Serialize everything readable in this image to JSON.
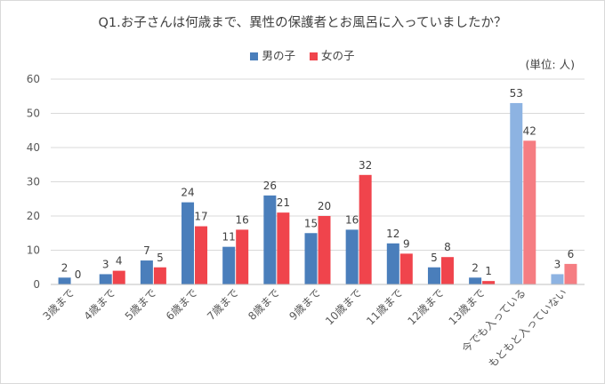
{
  "chart_data": {
    "type": "bar",
    "title": "Q1.お子さんは何歳まで、異性の保護者とお風呂に入っていましたか？",
    "unit_note": "(単位: 人)",
    "categories": [
      "3歳まで",
      "4歳まで",
      "5歳まで",
      "6歳まで",
      "7歳まで",
      "8歳まで",
      "9歳まで",
      "10歳まで",
      "11歳まで",
      "12歳まで",
      "13歳まで",
      "今でも入っている",
      "もともと入っていない"
    ],
    "series": [
      {
        "name": "男の子",
        "values": [
          2,
          3,
          7,
          24,
          11,
          26,
          15,
          16,
          12,
          5,
          2,
          53,
          3
        ],
        "color": "#4a7ebb",
        "light_color": "#8db3e2"
      },
      {
        "name": "女の子",
        "values": [
          0,
          4,
          5,
          17,
          16,
          21,
          20,
          32,
          9,
          8,
          1,
          42,
          6
        ],
        "color": "#f0444c",
        "light_color": "#f57d82"
      }
    ],
    "highlighted_categories": [
      "今でも入っている",
      "もともと入っていない"
    ],
    "ylim": [
      0,
      60
    ],
    "yticks": [
      0,
      10,
      20,
      30,
      40,
      50,
      60
    ],
    "grid": true,
    "legend_position": "top"
  }
}
